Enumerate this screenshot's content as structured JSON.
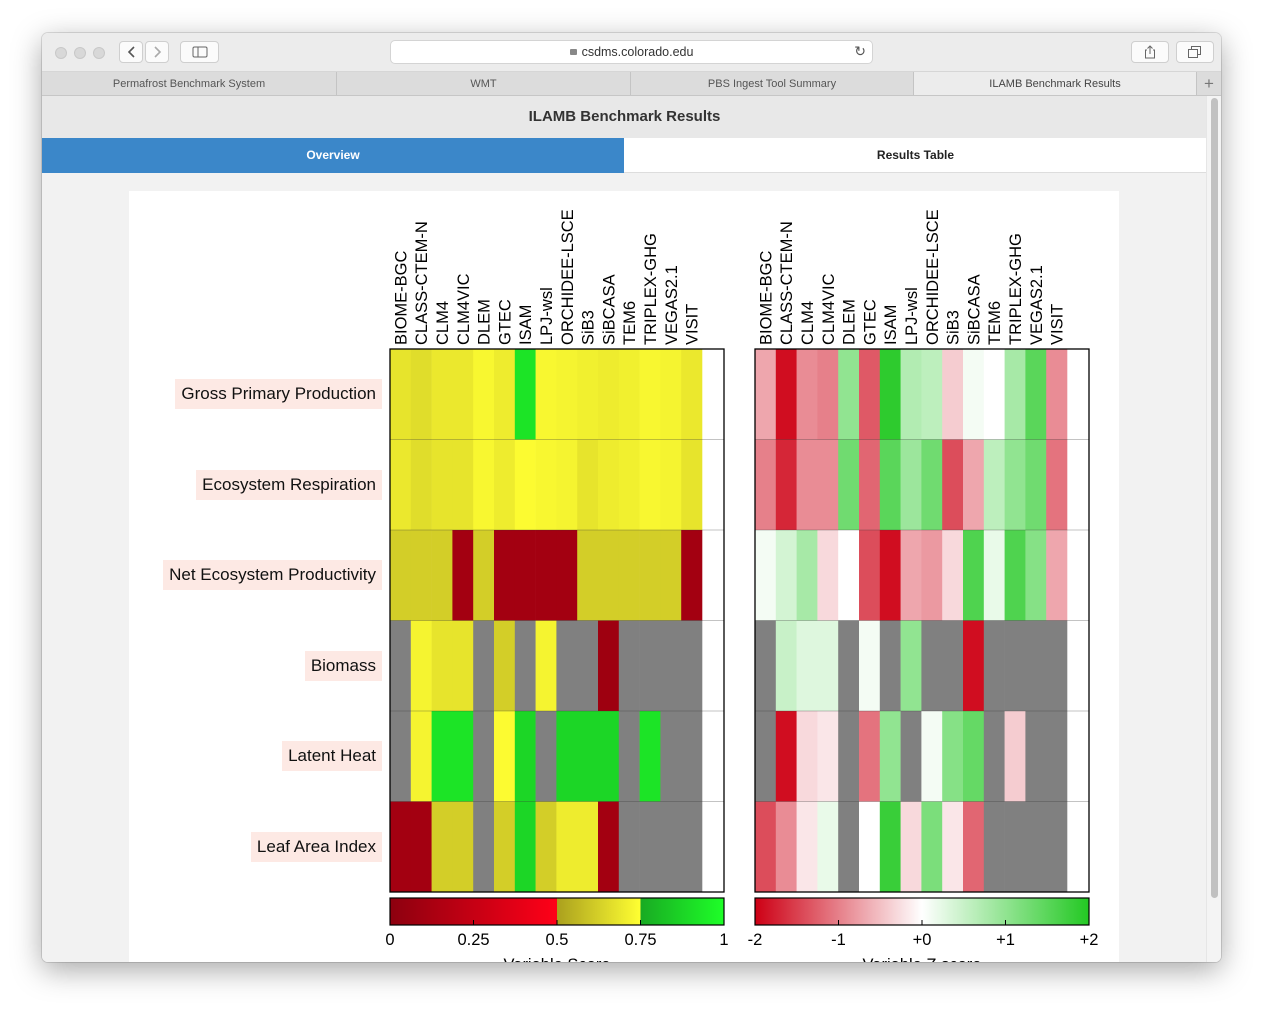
{
  "browser": {
    "url": "csdms.colorado.edu",
    "tabs": [
      {
        "label": "Permafrost Benchmark System",
        "active": false
      },
      {
        "label": "WMT",
        "active": false
      },
      {
        "label": "PBS Ingest Tool Summary",
        "active": false
      },
      {
        "label": "ILAMB Benchmark Results",
        "active": true
      }
    ],
    "new_tab_label": "+"
  },
  "page": {
    "title": "ILAMB Benchmark Results",
    "nav": {
      "overview": "Overview",
      "results_table": "Results Table"
    }
  },
  "chart_data": [
    {
      "type": "heatmap",
      "rows": [
        "Gross Primary Production",
        "Ecosystem Respiration",
        "Net Ecosystem Productivity",
        "Biomass",
        "Latent Heat",
        "Leaf Area Index"
      ],
      "columns": [
        "BIOME-BGC",
        "CLASS-CTEM-N",
        "CLM4",
        "CLM4VIC",
        "DLEM",
        "GTEC",
        "ISAM",
        "LPJ-wsl",
        "ORCHIDEE-LSCE",
        "SiB3",
        "SiBCASA",
        "TEM6",
        "TRIPLEX-GHG",
        "VEGAS2.1",
        "VISIT"
      ],
      "values": [
        [
          0.68,
          0.66,
          0.69,
          0.69,
          0.73,
          0.7,
          0.92,
          0.73,
          0.72,
          0.71,
          0.7,
          0.71,
          0.73,
          0.72,
          0.69
        ],
        [
          0.69,
          0.66,
          0.68,
          0.68,
          0.73,
          0.7,
          0.74,
          0.73,
          0.72,
          0.68,
          0.7,
          0.71,
          0.73,
          0.72,
          0.68
        ],
        [
          0.62,
          0.62,
          0.62,
          0.1,
          0.62,
          0.1,
          0.1,
          0.1,
          0.1,
          0.62,
          0.62,
          0.62,
          0.62,
          0.62,
          0.1
        ],
        [
          null,
          0.72,
          0.68,
          0.68,
          null,
          0.62,
          null,
          0.72,
          null,
          null,
          0.08,
          null,
          null,
          null,
          null
        ],
        [
          null,
          0.72,
          0.92,
          0.92,
          null,
          0.74,
          0.88,
          null,
          0.88,
          0.88,
          0.88,
          null,
          0.92,
          null,
          null
        ],
        [
          0.1,
          0.1,
          0.62,
          0.62,
          null,
          0.62,
          0.88,
          0.62,
          0.7,
          0.7,
          0.1,
          null,
          null,
          null,
          null
        ]
      ],
      "colorbar": {
        "ticks": [
          "0",
          "0.25",
          "0.5",
          "0.75",
          "1"
        ],
        "label": "Variable Score"
      },
      "colors": {
        "missing": "#808080"
      }
    },
    {
      "type": "heatmap",
      "rows": [
        "Gross Primary Production",
        "Ecosystem Respiration",
        "Net Ecosystem Productivity",
        "Biomass",
        "Latent Heat",
        "Leaf Area Index"
      ],
      "columns": [
        "BIOME-BGC",
        "CLASS-CTEM-N",
        "CLM4",
        "CLM4VIC",
        "DLEM",
        "GTEC",
        "ISAM",
        "LPJ-wsl",
        "ORCHIDEE-LSCE",
        "SiB3",
        "SiBCASA",
        "TEM6",
        "TRIPLEX-GHG",
        "VEGAS2.1",
        "VISIT"
      ],
      "values": [
        [
          -0.7,
          -1.9,
          -0.9,
          -1.0,
          1.0,
          -1.3,
          1.9,
          0.7,
          0.6,
          -0.4,
          0.1,
          0.0,
          0.8,
          1.5,
          -0.9
        ],
        [
          -1.0,
          -1.7,
          -0.9,
          -0.9,
          1.3,
          -1.2,
          1.5,
          0.9,
          1.3,
          -1.4,
          -0.7,
          0.6,
          1.0,
          1.3,
          -1.1
        ],
        [
          0.1,
          0.4,
          0.8,
          -0.3,
          0.0,
          -1.4,
          -1.9,
          -0.7,
          -0.8,
          -0.3,
          1.6,
          0.2,
          1.6,
          1.1,
          -0.7
        ],
        [
          null,
          0.5,
          0.3,
          0.3,
          null,
          0.1,
          null,
          1.0,
          null,
          null,
          -1.9,
          null,
          null,
          null,
          null
        ],
        [
          null,
          -1.9,
          -0.3,
          -0.2,
          null,
          -1.1,
          1.0,
          null,
          0.1,
          1.1,
          1.4,
          null,
          -0.4,
          null,
          null
        ],
        [
          -1.4,
          -0.9,
          -0.2,
          0.2,
          null,
          0.0,
          1.8,
          -0.3,
          1.2,
          -0.2,
          -1.2,
          null,
          null,
          null,
          null
        ]
      ],
      "colorbar": {
        "ticks": [
          "-2",
          "-1",
          "+0",
          "+1",
          "+2"
        ],
        "label": "Variable Z score"
      },
      "colors": {
        "missing": "#808080"
      }
    }
  ]
}
